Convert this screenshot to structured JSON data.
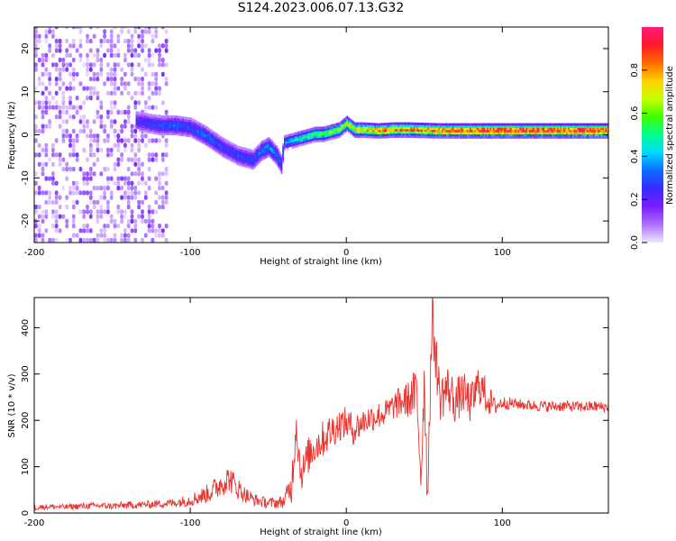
{
  "figure": {
    "title": "S124.2023.006.07.13.G32"
  },
  "colors": {
    "snr_line": "#e8332e",
    "colorbar_stops": [
      "#e8e8ff",
      "#b070ff",
      "#7a1fff",
      "#3a2bff",
      "#0a6bff",
      "#00d8ff",
      "#00ff90",
      "#40ff00",
      "#c8ff00",
      "#ffd000",
      "#ff6a00",
      "#ff1a2a",
      "#ff1a7a"
    ]
  },
  "chart_data": [
    {
      "type": "heatmap",
      "xlabel": "Height of straight line (km)",
      "ylabel": "Frequency (Hz)",
      "xlim": [
        -200,
        168
      ],
      "ylim": [
        -25,
        25
      ],
      "xticks": [
        -200,
        -100,
        0,
        100
      ],
      "xtick_labels": [
        "-200",
        "-100",
        "0",
        "100"
      ],
      "yticks": [
        -20,
        -10,
        0,
        10,
        20
      ],
      "ytick_labels": [
        "-20",
        "-10",
        "0",
        "10",
        "20"
      ],
      "colorbar": {
        "label": "Normalized spectral amplitude",
        "range": [
          0,
          1
        ],
        "ticks": [
          0.0,
          0.2,
          0.4,
          0.6,
          0.8
        ],
        "tick_labels": [
          "0.0",
          "0.2",
          "0.4",
          "0.6",
          "0.8"
        ]
      },
      "ridge": {
        "x": [
          -135,
          -120,
          -110,
          -100,
          -90,
          -80,
          -70,
          -60,
          -55,
          -50,
          -45,
          -42,
          -40,
          -35,
          -30,
          -25,
          -20,
          -15,
          -10,
          -5,
          0,
          5,
          10,
          20,
          30,
          40,
          60,
          80,
          100,
          120,
          140,
          168
        ],
        "frequency": [
          3,
          2,
          2,
          1.5,
          -0.5,
          -3,
          -5,
          -6,
          -4,
          -3,
          -5,
          -7,
          -2,
          -1.5,
          -1,
          -0.5,
          0,
          0,
          0.5,
          1,
          2.5,
          1,
          1,
          0.8,
          1,
          1,
          0.8,
          0.8,
          0.8,
          0.8,
          0.8,
          0.8
        ],
        "amplitude": [
          0.25,
          0.3,
          0.35,
          0.3,
          0.35,
          0.3,
          0.3,
          0.3,
          0.35,
          0.4,
          0.35,
          0.3,
          0.4,
          0.45,
          0.5,
          0.55,
          0.6,
          0.6,
          0.65,
          0.7,
          0.75,
          0.8,
          0.8,
          0.85,
          0.9,
          0.9,
          0.92,
          0.95,
          0.97,
          0.98,
          0.99,
          1.0
        ]
      },
      "noise_region": {
        "x": [
          -200,
          -115
        ],
        "amplitude": 0.1
      }
    },
    {
      "type": "line",
      "xlabel": "Height of straight line (km)",
      "ylabel": "SNR (10 * v/v)",
      "xlim": [
        -200,
        168
      ],
      "ylim": [
        0,
        465
      ],
      "xticks": [
        -200,
        -100,
        0,
        100
      ],
      "xtick_labels": [
        "-200",
        "-100",
        "0",
        "100"
      ],
      "yticks": [
        0,
        100,
        200,
        300,
        400
      ],
      "ytick_labels": [
        "0",
        "100",
        "200",
        "300",
        "400"
      ],
      "series": [
        {
          "x": [
            -200,
            -190,
            -180,
            -170,
            -160,
            -150,
            -140,
            -130,
            -120,
            -110,
            -100,
            -90,
            -85,
            -80,
            -75,
            -70,
            -65,
            -60,
            -55,
            -50,
            -45,
            -40,
            -35,
            -32,
            -30,
            -28,
            -25,
            -20,
            -15,
            -10,
            -5,
            0,
            5,
            10,
            15,
            20,
            25,
            30,
            35,
            40,
            45,
            48,
            50,
            52,
            55,
            60,
            65,
            70,
            75,
            80,
            85,
            90,
            95,
            100,
            110,
            120,
            130,
            140,
            150,
            160,
            168
          ],
          "y": [
            12,
            14,
            13,
            15,
            16,
            15,
            17,
            18,
            20,
            22,
            28,
            40,
            50,
            65,
            75,
            55,
            40,
            30,
            25,
            22,
            22,
            25,
            60,
            200,
            110,
            85,
            120,
            145,
            160,
            175,
            190,
            195,
            180,
            195,
            205,
            210,
            215,
            230,
            240,
            245,
            260,
            80,
            300,
            40,
            420,
            250,
            270,
            240,
            260,
            235,
            280,
            250,
            230,
            238,
            235,
            232,
            230,
            231,
            229,
            230,
            228
          ],
          "spread": [
            6,
            6,
            6,
            7,
            7,
            7,
            8,
            8,
            9,
            10,
            14,
            20,
            25,
            30,
            30,
            25,
            18,
            14,
            12,
            12,
            12,
            14,
            40,
            50,
            45,
            40,
            40,
            40,
            40,
            40,
            35,
            35,
            35,
            30,
            30,
            30,
            30,
            30,
            35,
            40,
            60,
            60,
            60,
            60,
            60,
            55,
            50,
            50,
            45,
            45,
            45,
            40,
            20,
            15,
            12,
            12,
            12,
            12,
            12,
            12,
            12
          ]
        }
      ]
    }
  ]
}
